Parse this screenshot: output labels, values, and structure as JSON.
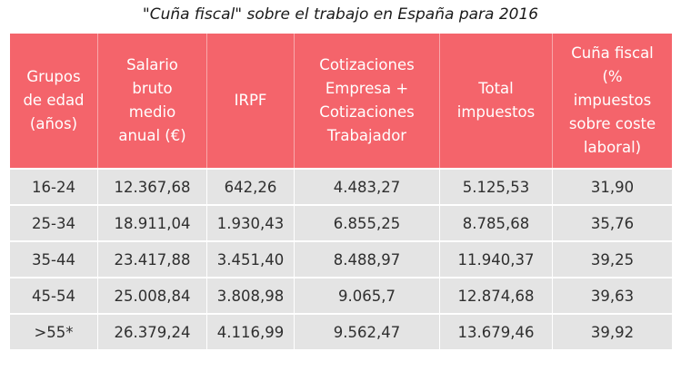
{
  "title": "\"Cuña fiscal\" sobre el trabajo en España para 2016",
  "colors": {
    "header_bg": "#f4646b",
    "row_bg": "#e4e4e4"
  },
  "table": {
    "headers": [
      "Grupos\nde edad\n(años)",
      "Salario\nbruto\nmedio\nanual (€)",
      "IRPF",
      "Cotizaciones\nEmpresa +\nCotizaciones\nTrabajador",
      "Total\nimpuestos",
      "Cuña fiscal\n(%\nimpuestos\nsobre coste\nlaboral)"
    ],
    "rows": [
      [
        "16-24",
        "12.367,68",
        "642,26",
        "4.483,27",
        "5.125,53",
        "31,90"
      ],
      [
        "25-34",
        "18.911,04",
        "1.930,43",
        "6.855,25",
        "8.785,68",
        "35,76"
      ],
      [
        "35-44",
        "23.417,88",
        "3.451,40",
        "8.488,97",
        "11.940,37",
        "39,25"
      ],
      [
        "45-54",
        "25.008,84",
        "3.808,98",
        "9.065,7",
        "12.874,68",
        "39,63"
      ],
      [
        ">55*",
        "26.379,24",
        "4.116,99",
        "9.562,47",
        "13.679,46",
        "39,92"
      ]
    ]
  }
}
